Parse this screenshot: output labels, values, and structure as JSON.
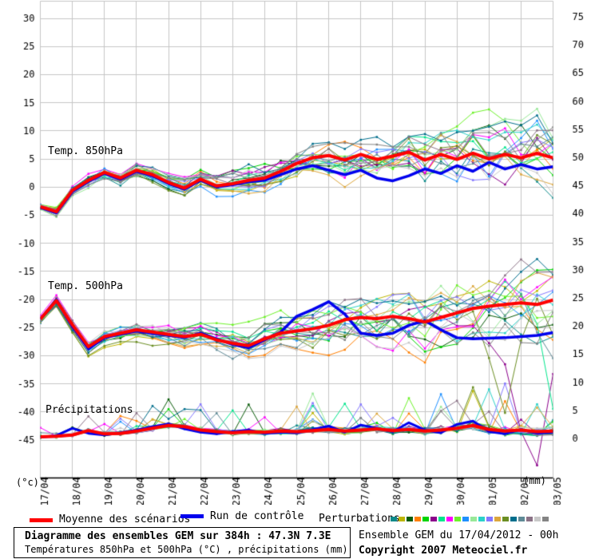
{
  "chart": {
    "left_axis": {
      "unit": "(°c)",
      "ticks": [
        30,
        25,
        20,
        15,
        10,
        5,
        0,
        -5,
        -10,
        -15,
        -20,
        -25,
        -30,
        -35,
        -40,
        -45
      ]
    },
    "right_axis": {
      "unit": "(mm)",
      "ticks": [
        75,
        70,
        65,
        60,
        55,
        50,
        45,
        40,
        35,
        30,
        25,
        20,
        15,
        10,
        5,
        0
      ]
    },
    "x_axis": {
      "dates": [
        "17/04",
        "18/04",
        "19/04",
        "20/04",
        "21/04",
        "22/04",
        "23/04",
        "24/04",
        "25/04",
        "26/04",
        "27/04",
        "28/04",
        "29/04",
        "30/04",
        "01/05",
        "02/05",
        "03/05"
      ]
    },
    "panels": [
      {
        "label": "Temp. 850hPa"
      },
      {
        "label": "Temp. 500hPa"
      },
      {
        "label": "Précipitations"
      }
    ],
    "grid_color": "#c6c6c6",
    "axis_color": "#000000"
  },
  "chart_data": {
    "type": "line",
    "title": "Diagramme des ensembles GEM sur 384h : 47.3N 7.3E",
    "x_hours_step": 12,
    "x_points": 33,
    "x_dates": [
      "17/04",
      "18/04",
      "19/04",
      "20/04",
      "21/04",
      "22/04",
      "23/04",
      "24/04",
      "25/04",
      "26/04",
      "27/04",
      "28/04",
      "29/04",
      "30/04",
      "01/05",
      "02/05",
      "03/05"
    ],
    "left_axis_range": [
      -50,
      30
    ],
    "right_axis_range": [
      0,
      75
    ],
    "series": [
      {
        "name": "Moyenne des scénarios - Temp. 850hPa (°C)",
        "panel": "850hPa",
        "color": "#ff0000",
        "width": 4,
        "values": [
          -3.5,
          -4.4,
          -0.6,
          1.2,
          2.6,
          1.6,
          3.0,
          2.2,
          0.8,
          -0.2,
          1.4,
          0.2,
          0.6,
          1.2,
          1.6,
          2.8,
          4.2,
          5.2,
          5.6,
          4.8,
          5.8,
          4.9,
          5.5,
          6.2,
          4.8,
          5.8,
          4.9,
          6.0,
          5.0,
          5.8,
          5.2,
          6.0,
          5.2
        ]
      },
      {
        "name": "Run de contrôle - Temp. 850hPa (°C)",
        "panel": "850hPa",
        "color": "#0000ee",
        "width": 3.5,
        "values": [
          -3.6,
          -4.6,
          -0.8,
          1.0,
          2.4,
          1.4,
          2.8,
          2.0,
          0.6,
          -0.4,
          1.2,
          0.0,
          0.4,
          0.9,
          1.2,
          2.2,
          3.2,
          3.8,
          3.0,
          2.2,
          3.0,
          1.6,
          1.1,
          2.0,
          3.2,
          2.4,
          3.8,
          2.8,
          4.4,
          3.2,
          4.0,
          3.2,
          3.6
        ]
      },
      {
        "name": "Moyenne des scénarios - Temp. 500hPa (°C)",
        "panel": "500hPa",
        "color": "#ff0000",
        "width": 4,
        "values": [
          -23.5,
          -20.2,
          -24.5,
          -28.4,
          -26.6,
          -26.0,
          -25.4,
          -25.8,
          -26.2,
          -26.6,
          -26.2,
          -27.2,
          -27.8,
          -28.2,
          -27.0,
          -26.0,
          -25.6,
          -25.2,
          -24.6,
          -23.6,
          -23.2,
          -23.4,
          -23.0,
          -23.4,
          -24.0,
          -23.2,
          -22.4,
          -21.6,
          -21.2,
          -20.9,
          -20.6,
          -20.9,
          -20.1
        ]
      },
      {
        "name": "Run de contrôle - Temp. 500hPa (°C)",
        "panel": "500hPa",
        "color": "#0000ee",
        "width": 3.5,
        "values": [
          -23.5,
          -20.0,
          -24.8,
          -28.8,
          -26.8,
          -26.2,
          -25.6,
          -26.0,
          -26.4,
          -26.8,
          -26.0,
          -27.0,
          -28.0,
          -28.6,
          -27.2,
          -25.8,
          -23.0,
          -21.8,
          -20.4,
          -22.6,
          -26.0,
          -26.4,
          -26.0,
          -24.6,
          -23.8,
          -25.4,
          -26.8,
          -27.0,
          -26.9,
          -26.8,
          -26.6,
          -26.4,
          -25.9
        ]
      },
      {
        "name": "Moyenne des scénarios - Précipitations (mm)",
        "panel": "precip",
        "color": "#ff0000",
        "width": 4,
        "values": [
          0.3,
          0.4,
          0.6,
          1.4,
          0.8,
          0.9,
          1.3,
          1.8,
          2.3,
          2.1,
          1.5,
          1.2,
          1.0,
          1.2,
          1.1,
          1.3,
          1.2,
          1.4,
          1.6,
          1.3,
          1.5,
          1.7,
          1.4,
          1.6,
          1.3,
          1.5,
          1.8,
          2.3,
          1.6,
          1.3,
          1.5,
          1.2,
          1.3
        ]
      },
      {
        "name": "Run de contrôle - Précipitations (mm)",
        "panel": "precip",
        "color": "#0000ee",
        "width": 3,
        "values": [
          0.2,
          0.5,
          1.8,
          0.9,
          0.6,
          1.0,
          1.5,
          2.1,
          2.6,
          1.7,
          1.1,
          0.8,
          1.2,
          1.5,
          0.9,
          1.1,
          1.0,
          1.6,
          2.2,
          1.1,
          2.4,
          1.8,
          1.2,
          2.8,
          1.5,
          1.0,
          2.5,
          3.1,
          1.2,
          0.8,
          1.6,
          0.9,
          1.1
        ]
      }
    ],
    "perturbations": {
      "count": 20,
      "seed": 7,
      "colors": [
        "#0d8a8a",
        "#bdb500",
        "#0a5c0a",
        "#ff7f00",
        "#00d400",
        "#8b008b",
        "#00e68c",
        "#ff00ff",
        "#6ef22a",
        "#1e90ff",
        "#98e898",
        "#2ad1c9",
        "#8478ff",
        "#dca63c",
        "#6b8e23",
        "#006e8c",
        "#5f8a96",
        "#8b7286",
        "#c8c8c8",
        "#848484"
      ],
      "outliers_500hPa": [
        {
          "member": 5,
          "start": 28,
          "deltas": [
            -1,
            -6,
            -16,
            -22,
            -9
          ]
        },
        {
          "member": 14,
          "start": 27,
          "deltas": [
            -2,
            -9,
            -18,
            -7,
            -1,
            -3
          ]
        },
        {
          "member": 6,
          "start": 30,
          "deltas": [
            -2,
            -10,
            -20
          ]
        },
        {
          "member": 16,
          "start": 31,
          "deltas": [
            -6,
            -14
          ]
        }
      ]
    }
  },
  "legend": {
    "mean_label": "Moyenne des scénarios",
    "mean_color": "#ff0000",
    "control_label": "Run de contrôle",
    "control_color": "#0000ee",
    "perturbations_label": "Perturbations"
  },
  "footer": {
    "title": "Diagramme des ensembles GEM sur 384h : 47.3N 7.3E",
    "subtitle": "Températures 850hPa et 500hPa (°C) , précipitations (mm)",
    "run_info": "Ensemble GEM du 17/04/2012 - 00h",
    "copyright": "Copyright 2007 Meteociel.fr"
  }
}
